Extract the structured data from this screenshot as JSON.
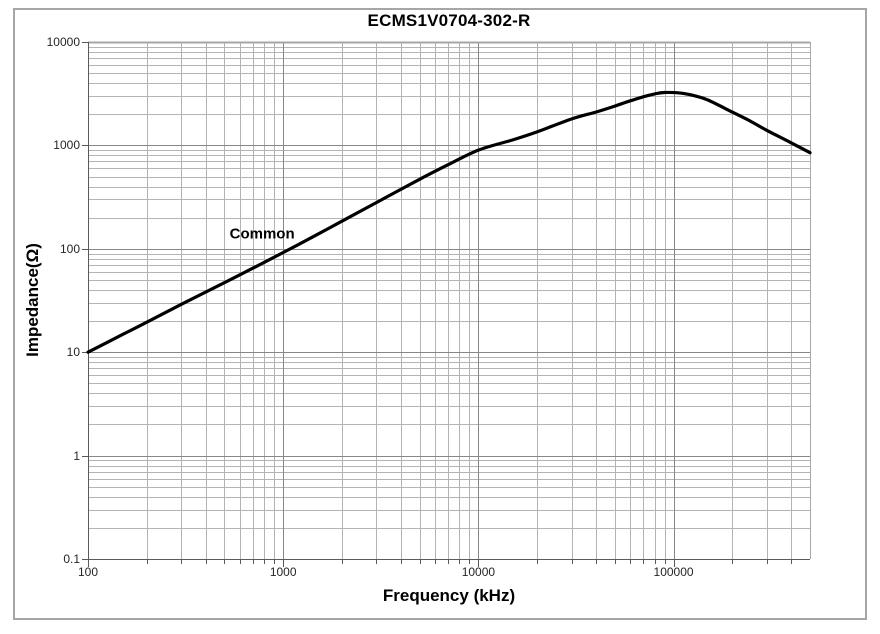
{
  "frame": {
    "background": "#ffffff",
    "border_color": "#a6a6a6"
  },
  "chart_data": {
    "type": "line",
    "title": "ECMS1V0704-302-R",
    "xlabel": "Frequency (kHz)",
    "ylabel": "Impedance(Ω)",
    "x_scale": "log",
    "y_scale": "log",
    "xlim": [
      100,
      500000
    ],
    "ylim": [
      0.1,
      10000
    ],
    "grid": "major and minor gridlines on both axes",
    "legend_position": "none",
    "x_ticks": [
      {
        "value": 100,
        "label": "100"
      },
      {
        "value": 1000,
        "label": "1000"
      },
      {
        "value": 10000,
        "label": "10000"
      },
      {
        "value": 100000,
        "label": "100000"
      }
    ],
    "y_ticks": [
      {
        "value": 10000,
        "label": "10000"
      },
      {
        "value": 1000,
        "label": "1000"
      },
      {
        "value": 100,
        "label": "100"
      },
      {
        "value": 10,
        "label": "10"
      },
      {
        "value": 1,
        "label": "1"
      },
      {
        "value": 0.1,
        "label": "0.1"
      }
    ],
    "annotation": {
      "text": "Common",
      "freq_khz": 780,
      "impedance_ohm": 140
    },
    "series": [
      {
        "name": "Common",
        "color": "#000000",
        "points": [
          [
            100,
            10
          ],
          [
            150,
            14.8
          ],
          [
            200,
            19.5
          ],
          [
            300,
            29
          ],
          [
            500,
            47
          ],
          [
            700,
            65
          ],
          [
            1000,
            92
          ],
          [
            1500,
            138
          ],
          [
            2000,
            185
          ],
          [
            3000,
            280
          ],
          [
            5000,
            470
          ],
          [
            7000,
            650
          ],
          [
            10000,
            900
          ],
          [
            15000,
            1130
          ],
          [
            20000,
            1350
          ],
          [
            30000,
            1800
          ],
          [
            40000,
            2100
          ],
          [
            50000,
            2400
          ],
          [
            60000,
            2700
          ],
          [
            70000,
            2950
          ],
          [
            80000,
            3150
          ],
          [
            90000,
            3250
          ],
          [
            110000,
            3200
          ],
          [
            130000,
            3000
          ],
          [
            150000,
            2750
          ],
          [
            200000,
            2100
          ],
          [
            250000,
            1700
          ],
          [
            300000,
            1400
          ],
          [
            400000,
            1060
          ],
          [
            500000,
            850
          ]
        ]
      }
    ],
    "styles": {
      "grid_minor_color": "#b3b3b3",
      "grid_major_color": "#878787",
      "axis_color": "#595959",
      "plot_border_color": "#a6a6a6",
      "curve_color": "#000000",
      "curve_width": 3.2
    }
  }
}
